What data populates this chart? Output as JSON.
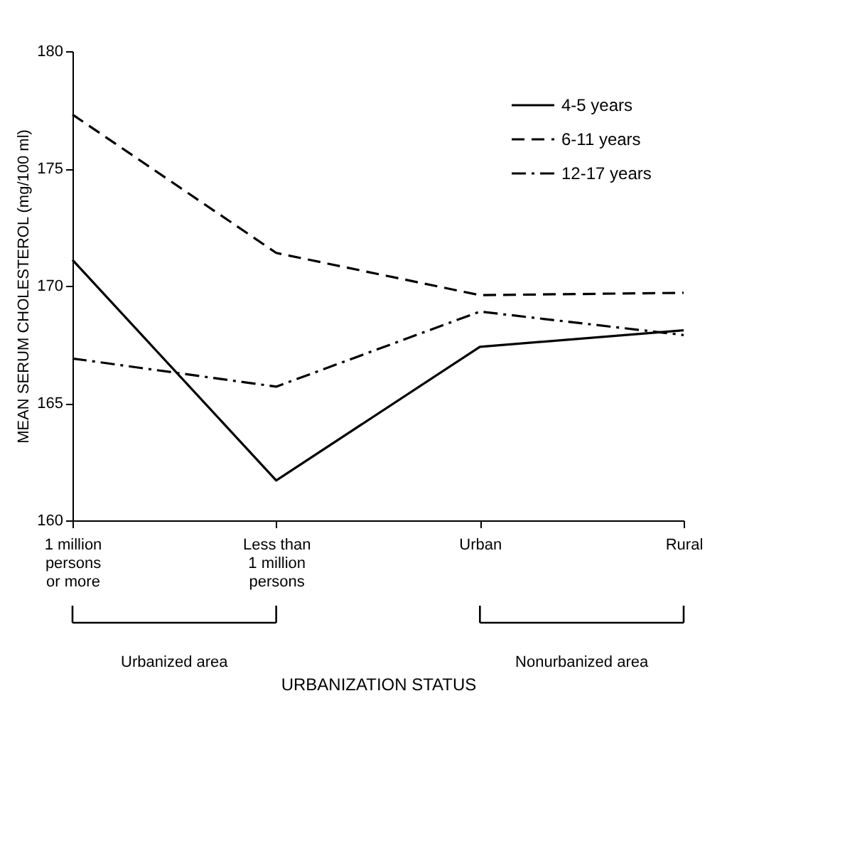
{
  "chart_data": {
    "type": "line",
    "xlabel": "URBANIZATION STATUS",
    "ylabel": "MEAN SERUM CHOLESTEROL (mg/100 ml)",
    "categories": [
      "1 million\npersons\nor more",
      "Less than\n1 million\npersons",
      "Urban",
      "Rural"
    ],
    "series": [
      {
        "name": "4-5 years",
        "color": "#000000",
        "line_style": "solid",
        "values": [
          171.1,
          161.7,
          167.4,
          168.1
        ]
      },
      {
        "name": "6-11 years",
        "color": "#000000",
        "line_style": "dashed",
        "values": [
          177.3,
          171.4,
          169.6,
          169.7
        ]
      },
      {
        "name": "12-17 years",
        "color": "#000000",
        "line_style": "dashdot",
        "values": [
          166.9,
          165.7,
          168.9,
          167.9
        ]
      }
    ],
    "ylim": [
      160,
      180
    ],
    "yticks": [
      160,
      165,
      170,
      175,
      180
    ],
    "grid": false,
    "legend": "top right",
    "marker": "none",
    "annotations": [
      "Urbanized area",
      "Nonurbanized area"
    ]
  }
}
